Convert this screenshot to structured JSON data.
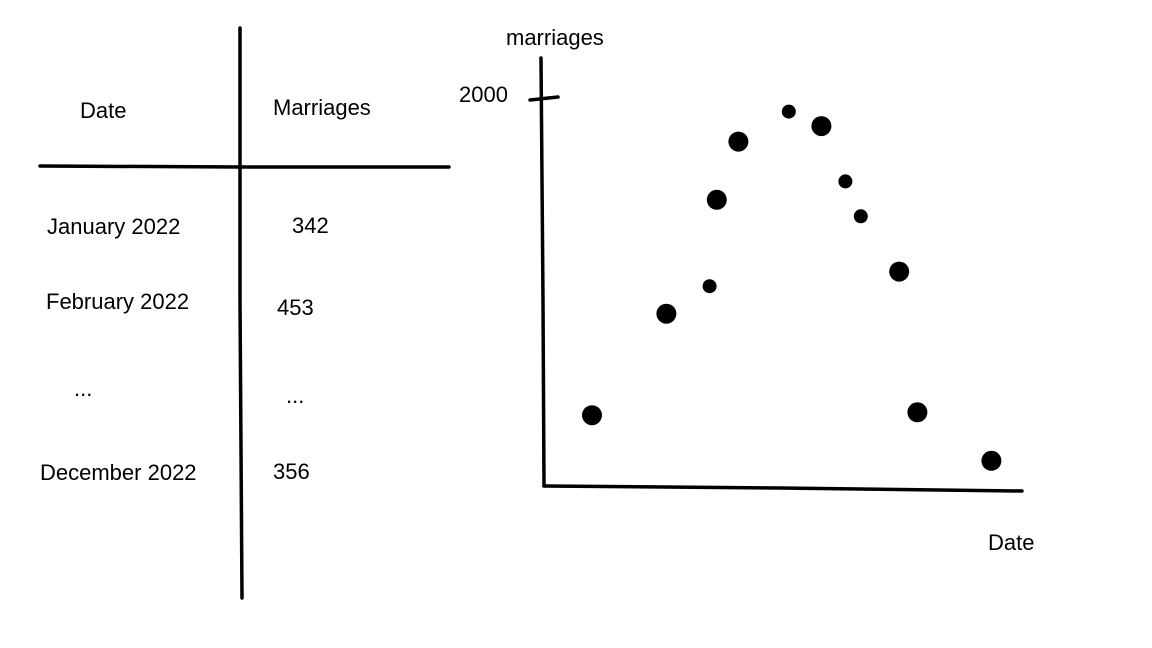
{
  "table": {
    "headers": {
      "date": "Date",
      "marriages": "Marriages"
    },
    "rows": [
      {
        "date": "January 2022",
        "marriages": "342"
      },
      {
        "date": "February 2022",
        "marriages": "453"
      },
      {
        "date": "...",
        "marriages": "..."
      },
      {
        "date": "December 2022",
        "marriages": "356"
      }
    ]
  },
  "chart_data": {
    "type": "scatter",
    "ylabel": "marriages",
    "xlabel": "Date",
    "y_ticks": [
      {
        "value": 2000,
        "label": "2000"
      }
    ],
    "ylim": [
      0,
      2150
    ],
    "points": [
      {
        "x": 1.0,
        "y": 365,
        "size": "large"
      },
      {
        "x": 2.55,
        "y": 888,
        "size": "large"
      },
      {
        "x": 3.45,
        "y": 1030,
        "size": "small"
      },
      {
        "x": 3.6,
        "y": 1475,
        "size": "large"
      },
      {
        "x": 4.05,
        "y": 1775,
        "size": "large"
      },
      {
        "x": 5.1,
        "y": 1930,
        "size": "small"
      },
      {
        "x": 5.78,
        "y": 1855,
        "size": "large"
      },
      {
        "x": 6.28,
        "y": 1570,
        "size": "small"
      },
      {
        "x": 6.6,
        "y": 1390,
        "size": "small"
      },
      {
        "x": 7.4,
        "y": 1105,
        "size": "large"
      },
      {
        "x": 7.78,
        "y": 380,
        "size": "large"
      },
      {
        "x": 9.32,
        "y": 130,
        "size": "large"
      }
    ]
  }
}
